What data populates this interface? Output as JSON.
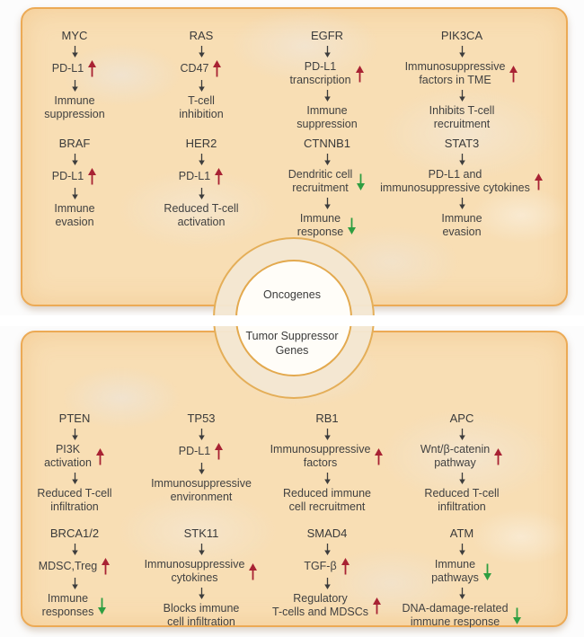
{
  "diagram": {
    "center": {
      "top_label": "Oncogenes",
      "bottom_label": "Tumor Suppressor\nGenes"
    },
    "colors": {
      "increase_arrow": "#a82233",
      "decrease_arrow": "#2e9e41",
      "connector_arrow": "#3d3d3d",
      "panel_border": "#ecaa55",
      "panel_fill": "#f8deb4"
    },
    "panels": [
      {
        "id": "oncogenes",
        "pathways": [
          {
            "gene": "MYC",
            "steps": [
              {
                "text": "PD-L1",
                "trend": "up"
              },
              {
                "text": "Immune\nsuppression"
              }
            ]
          },
          {
            "gene": "RAS",
            "steps": [
              {
                "text": "CD47",
                "trend": "up"
              },
              {
                "text": "T-cell\ninhibition"
              }
            ]
          },
          {
            "gene": "EGFR",
            "steps": [
              {
                "text": "PD-L1\ntranscription",
                "trend": "up"
              },
              {
                "text": "Immune\nsuppression"
              }
            ]
          },
          {
            "gene": "PIK3CA",
            "steps": [
              {
                "text": "Immunosuppressive\nfactors in TME",
                "trend": "up"
              },
              {
                "text": "Inhibits T-cell\nrecruitment"
              }
            ]
          },
          {
            "gene": "BRAF",
            "steps": [
              {
                "text": "PD-L1",
                "trend": "up"
              },
              {
                "text": "Immune\nevasion"
              }
            ]
          },
          {
            "gene": "HER2",
            "steps": [
              {
                "text": "PD-L1",
                "trend": "up"
              },
              {
                "text": "Reduced T-cell\nactivation"
              }
            ]
          },
          {
            "gene": "CTNNB1",
            "steps": [
              {
                "text": "Dendritic cell\nrecruitment",
                "trend": "down"
              },
              {
                "text": "Immune\nresponse",
                "trend": "down"
              }
            ]
          },
          {
            "gene": "STAT3",
            "steps": [
              {
                "text": "PD-L1 and\nimmunosuppressive cytokines",
                "trend": "up"
              },
              {
                "text": "Immune\nevasion"
              }
            ]
          }
        ]
      },
      {
        "id": "tumor-suppressor-genes",
        "pathways": [
          {
            "gene": "PTEN",
            "steps": [
              {
                "text": "PI3K\nactivation",
                "trend": "up"
              },
              {
                "text": "Reduced T-cell\ninfiltration"
              }
            ]
          },
          {
            "gene": "TP53",
            "steps": [
              {
                "text": "PD-L1",
                "trend": "up"
              },
              {
                "text": "Immunosuppressive\nenvironment"
              }
            ]
          },
          {
            "gene": "RB1",
            "steps": [
              {
                "text": "Immunosuppressive\nfactors",
                "trend": "up"
              },
              {
                "text": "Reduced immune\ncell recruitment"
              }
            ]
          },
          {
            "gene": "APC",
            "steps": [
              {
                "text": "Wnt/β-catenin\npathway",
                "trend": "up"
              },
              {
                "text": "Reduced T-cell\ninfiltration"
              }
            ]
          },
          {
            "gene": "BRCA1/2",
            "steps": [
              {
                "text": "MDSC,Treg",
                "trend": "up"
              },
              {
                "text": "Immune\nresponses",
                "trend": "down"
              }
            ]
          },
          {
            "gene": "STK11",
            "steps": [
              {
                "text": "Immunosuppressive\ncytokines",
                "trend": "up"
              },
              {
                "text": "Blocks immune\ncell infiltration"
              }
            ]
          },
          {
            "gene": "SMAD4",
            "steps": [
              {
                "text": "TGF-β",
                "trend": "up"
              },
              {
                "text": "Regulatory\nT-cells and MDSCs",
                "trend": "up"
              }
            ]
          },
          {
            "gene": "ATM",
            "steps": [
              {
                "text": "Immune\npathways",
                "trend": "down"
              },
              {
                "text": "DNA-damage-related\nimmune response",
                "trend": "down"
              }
            ]
          }
        ]
      }
    ]
  }
}
